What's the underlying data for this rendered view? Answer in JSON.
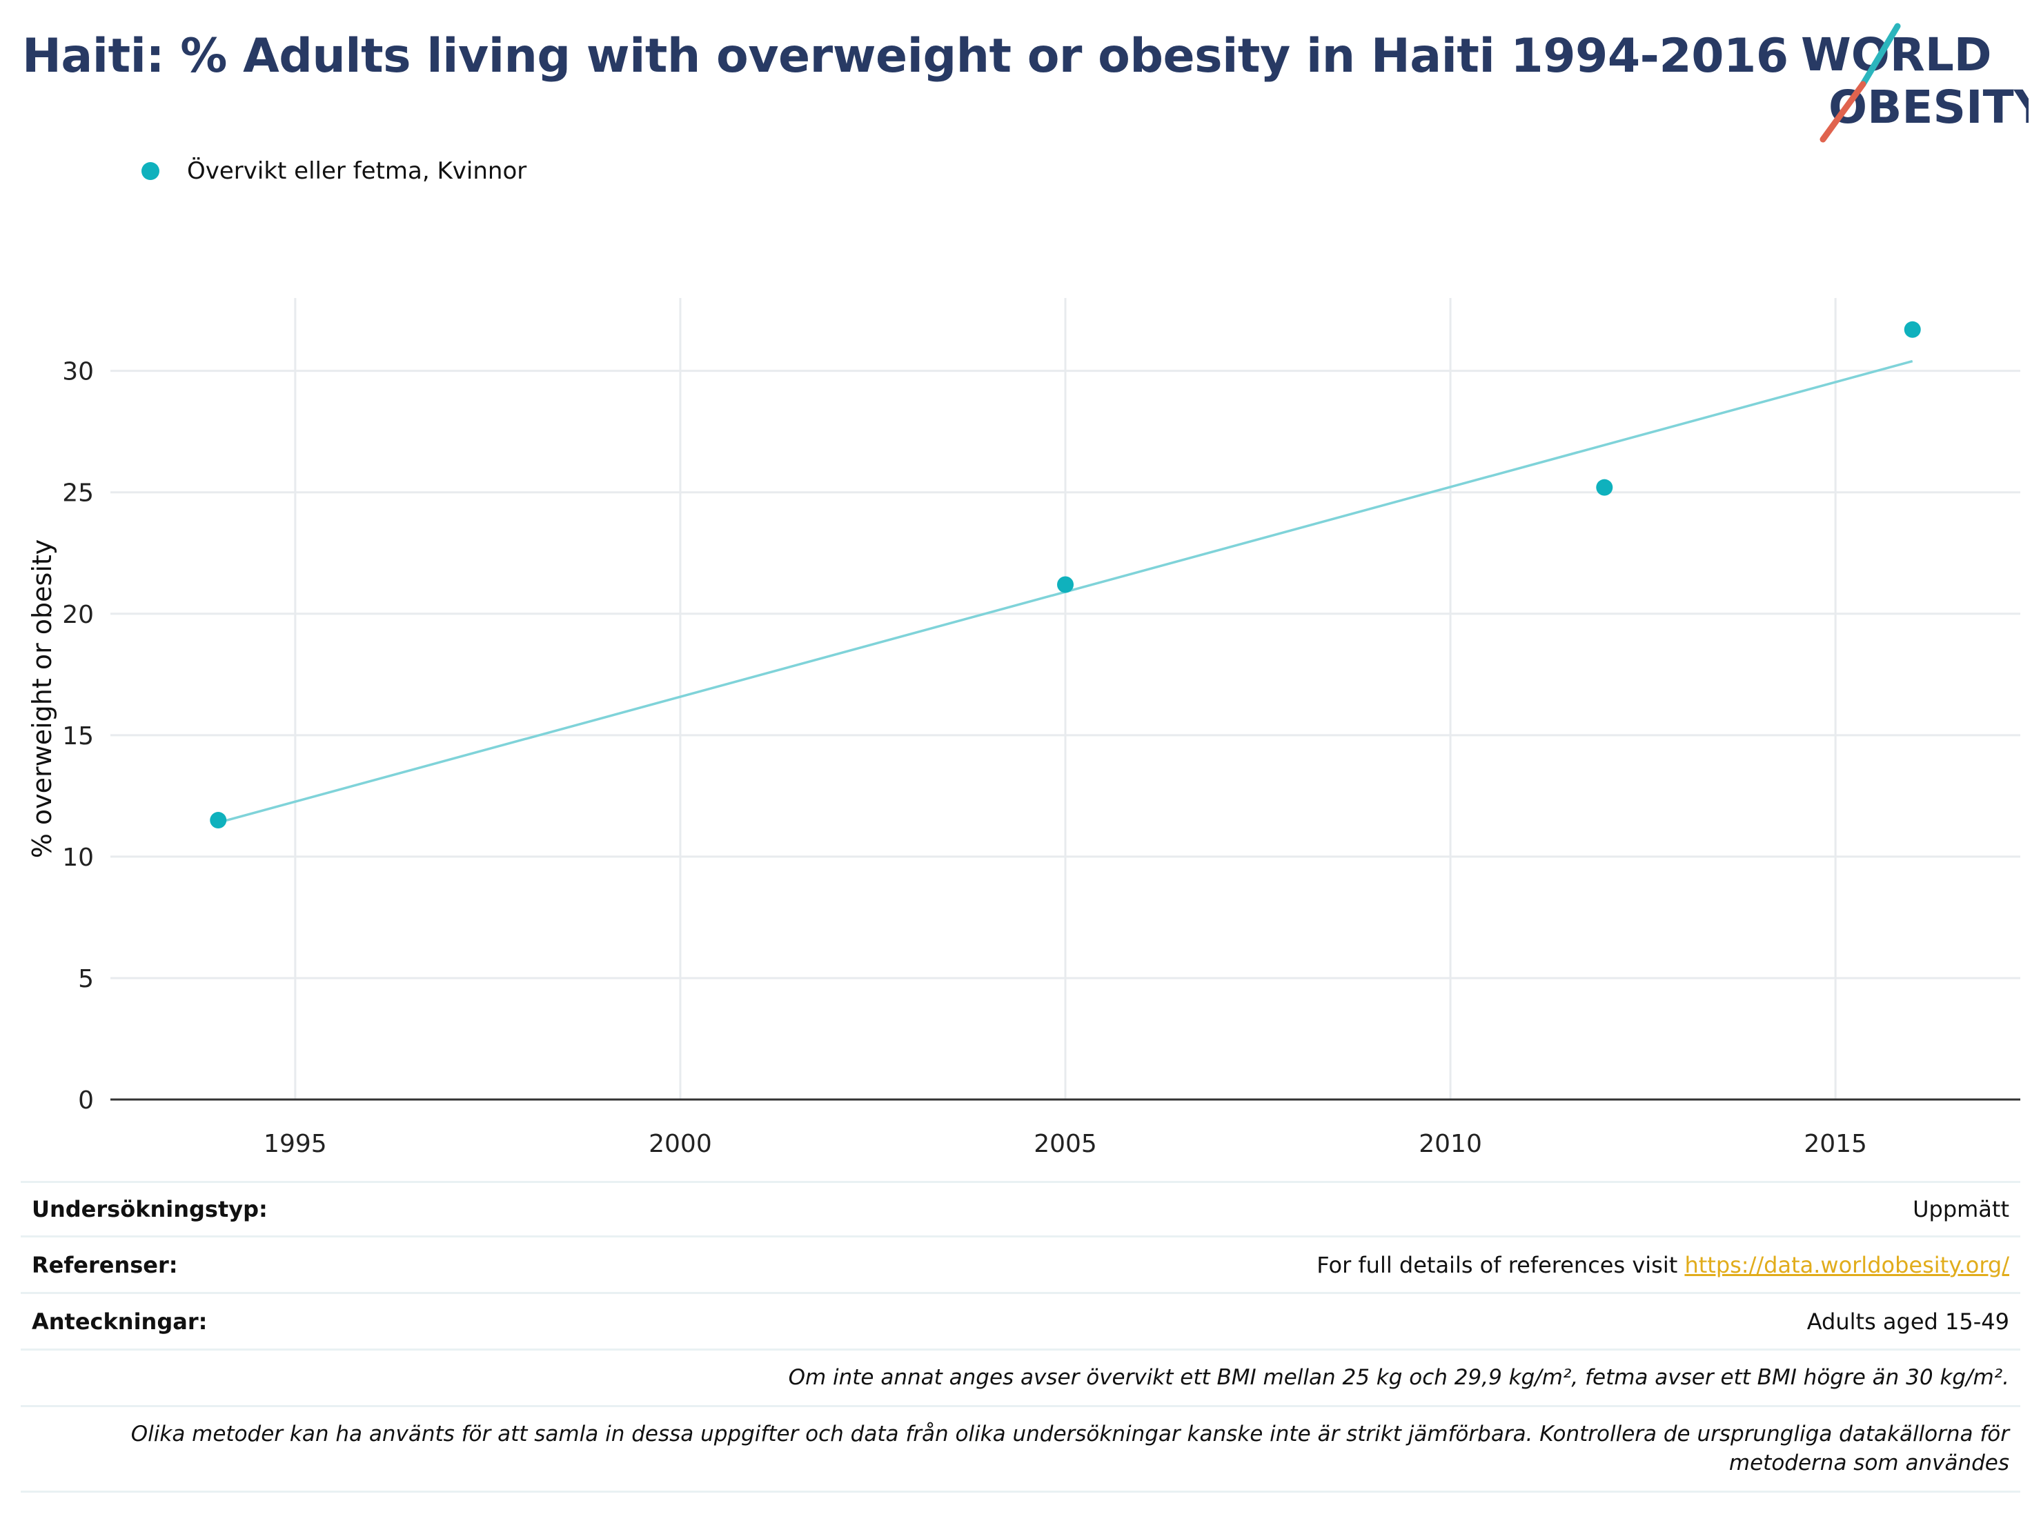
{
  "header": {
    "title": "Haiti: % Adults living with overweight or obesity in Haiti 1994-2016"
  },
  "logo": {
    "line1": "WORLD",
    "line2": "OBESITY",
    "colors": {
      "text": "#283a64",
      "slash_top": "#2bb5bd",
      "slash_bottom": "#e0634e"
    }
  },
  "legend": {
    "items": [
      {
        "label": "Övervikt eller fetma, Kvinnor",
        "color": "#0fb1bd"
      }
    ]
  },
  "chart_data": {
    "type": "scatter",
    "title": "",
    "xlabel": "",
    "ylabel": "% overweight or obesity",
    "xlim": [
      1992.6,
      2017.4
    ],
    "ylim": [
      0,
      33
    ],
    "x_ticks": [
      1995,
      2000,
      2005,
      2010,
      2015
    ],
    "y_ticks": [
      0,
      5,
      10,
      15,
      20,
      25,
      30
    ],
    "grid": true,
    "legend_position": "top-left",
    "series": [
      {
        "name": "Övervikt eller fetma, Kvinnor",
        "color": "#0fb1bd",
        "points": [
          {
            "x": 1994,
            "y": 11.5
          },
          {
            "x": 2005,
            "y": 21.2
          },
          {
            "x": 2012,
            "y": 25.2
          },
          {
            "x": 2016,
            "y": 31.7
          }
        ]
      }
    ],
    "trendline": {
      "color": "#7fd3d9",
      "points": [
        {
          "x": 1994,
          "y": 11.4
        },
        {
          "x": 2016,
          "y": 30.4
        }
      ]
    }
  },
  "info": {
    "survey_type_label": "Undersökningstyp:",
    "survey_type_value": "Uppmätt",
    "references_label": "Referenser:",
    "references_text": "For full details of references visit ",
    "references_link": "https://data.worldobesity.org/",
    "notes_label": "Anteckningar:",
    "notes_value": "Adults aged 15-49",
    "bmi_note": "Om inte annat anges avser övervikt ett BMI mellan 25 kg och 29,9 kg/m², fetma avser ett BMI högre än 30 kg/m².",
    "methods_note_line1": "Olika metoder kan ha använts för att samla in dessa uppgifter och data från olika undersökningar kanske inte är strikt jämförbara. Kontrollera de ursprungliga datakällorna för",
    "methods_note_line2": "metoderna som användes"
  }
}
